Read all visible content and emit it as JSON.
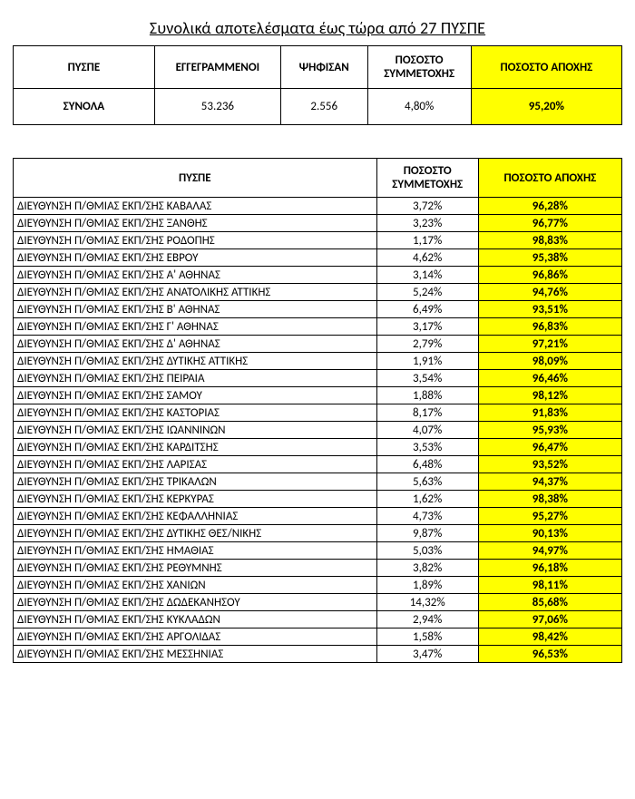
{
  "title": "Συνολικά αποτελέσματα έως τώρα από 27 ΠΥΣΠΕ",
  "colors": {
    "highlight": "#ffff00",
    "border": "#000000",
    "background": "#ffffff",
    "text": "#000000"
  },
  "summary": {
    "headers": {
      "pyspe": "ΠΥΣΠΕ",
      "registered": "ΕΓΓΕΓΡΑΜΜΕΝΟΙ",
      "voted": "ΨΗΦΙΣΑΝ",
      "participation": "ΠΟΣΟΣΤΟ ΣΥΜΜΕΤΟΧΗΣ",
      "abstention": "ΠΟΣΟΣΤΟ ΑΠΟΧΗΣ"
    },
    "row": {
      "label": "ΣΥΝΟΛΑ",
      "registered": "53.236",
      "voted": "2.556",
      "participation": "4,80%",
      "abstention": "95,20%"
    }
  },
  "detail": {
    "headers": {
      "pyspe": "ΠΥΣΠΕ",
      "participation": "ΠΟΣΟΣΤΟ ΣΥΜΜΕΤΟΧΗΣ",
      "abstention": "ΠΟΣΟΣΤΟ ΑΠΟΧΗΣ"
    },
    "rows": [
      {
        "name": "ΔΙΕΥΘΥΝΣΗ Π/ΘΜΙΑΣ ΕΚΠ/ΣΗΣ ΚΑΒΑΛΑΣ",
        "participation": "3,72%",
        "abstention": "96,28%"
      },
      {
        "name": "ΔΙΕΥΘΥΝΣΗ Π/ΘΜΙΑΣ ΕΚΠ/ΣΗΣ ΞΑΝΘΗΣ",
        "participation": "3,23%",
        "abstention": "96,77%"
      },
      {
        "name": "ΔΙΕΥΘΥΝΣΗ Π/ΘΜΙΑΣ ΕΚΠ/ΣΗΣ ΡΟΔΟΠΗΣ",
        "participation": "1,17%",
        "abstention": "98,83%"
      },
      {
        "name": "ΔΙΕΥΘΥΝΣΗ Π/ΘΜΙΑΣ ΕΚΠ/ΣΗΣ ΕΒΡΟΥ",
        "participation": "4,62%",
        "abstention": "95,38%"
      },
      {
        "name": "ΔΙΕΥΘΥΝΣΗ Π/ΘΜΙΑΣ ΕΚΠ/ΣΗΣ Α' ΑΘΗΝΑΣ",
        "participation": "3,14%",
        "abstention": "96,86%"
      },
      {
        "name": "ΔΙΕΥΘΥΝΣΗ Π/ΘΜΙΑΣ ΕΚΠ/ΣΗΣ ΑΝΑΤΟΛΙΚΗΣ ΑΤΤΙΚΗΣ",
        "participation": "5,24%",
        "abstention": "94,76%"
      },
      {
        "name": "ΔΙΕΥΘΥΝΣΗ Π/ΘΜΙΑΣ ΕΚΠ/ΣΗΣ Β' ΑΘΗΝΑΣ",
        "participation": "6,49%",
        "abstention": "93,51%"
      },
      {
        "name": "ΔΙΕΥΘΥΝΣΗ Π/ΘΜΙΑΣ ΕΚΠ/ΣΗΣ Γ' ΑΘΗΝΑΣ",
        "participation": "3,17%",
        "abstention": "96,83%"
      },
      {
        "name": "ΔΙΕΥΘΥΝΣΗ Π/ΘΜΙΑΣ ΕΚΠ/ΣΗΣ Δ' ΑΘΗΝΑΣ",
        "participation": "2,79%",
        "abstention": "97,21%"
      },
      {
        "name": "ΔΙΕΥΘΥΝΣΗ Π/ΘΜΙΑΣ ΕΚΠ/ΣΗΣ ΔΥΤΙΚΗΣ ΑΤΤΙΚΗΣ",
        "participation": "1,91%",
        "abstention": "98,09%"
      },
      {
        "name": "ΔΙΕΥΘΥΝΣΗ Π/ΘΜΙΑΣ ΕΚΠ/ΣΗΣ ΠΕΙΡΑΙΑ",
        "participation": "3,54%",
        "abstention": "96,46%"
      },
      {
        "name": "ΔΙΕΥΘΥΝΣΗ Π/ΘΜΙΑΣ ΕΚΠ/ΣΗΣ ΣΑΜΟΥ",
        "participation": "1,88%",
        "abstention": "98,12%"
      },
      {
        "name": "ΔΙΕΥΘΥΝΣΗ Π/ΘΜΙΑΣ ΕΚΠ/ΣΗΣ ΚΑΣΤΟΡΙΑΣ",
        "participation": "8,17%",
        "abstention": "91,83%"
      },
      {
        "name": "ΔΙΕΥΘΥΝΣΗ Π/ΘΜΙΑΣ ΕΚΠ/ΣΗΣ ΙΩΑΝΝΙΝΩΝ",
        "participation": "4,07%",
        "abstention": "95,93%"
      },
      {
        "name": "ΔΙΕΥΘΥΝΣΗ Π/ΘΜΙΑΣ ΕΚΠ/ΣΗΣ ΚΑΡΔΙΤΣΗΣ",
        "participation": "3,53%",
        "abstention": "96,47%"
      },
      {
        "name": "ΔΙΕΥΘΥΝΣΗ Π/ΘΜΙΑΣ ΕΚΠ/ΣΗΣ ΛΑΡΙΣΑΣ",
        "participation": "6,48%",
        "abstention": "93,52%"
      },
      {
        "name": "ΔΙΕΥΘΥΝΣΗ Π/ΘΜΙΑΣ ΕΚΠ/ΣΗΣ ΤΡΙΚΑΛΩΝ",
        "participation": "5,63%",
        "abstention": "94,37%"
      },
      {
        "name": "ΔΙΕΥΘΥΝΣΗ Π/ΘΜΙΑΣ ΕΚΠ/ΣΗΣ ΚΕΡΚΥΡΑΣ",
        "participation": "1,62%",
        "abstention": "98,38%"
      },
      {
        "name": "ΔΙΕΥΘΥΝΣΗ Π/ΘΜΙΑΣ ΕΚΠ/ΣΗΣ ΚΕΦΑΛΛΗΝΙΑΣ",
        "participation": "4,73%",
        "abstention": "95,27%"
      },
      {
        "name": "ΔΙΕΥΘΥΝΣΗ Π/ΘΜΙΑΣ ΕΚΠ/ΣΗΣ ΔΥΤΙΚΗΣ ΘΕΣ/ΝΙΚΗΣ",
        "participation": "9,87%",
        "abstention": "90,13%"
      },
      {
        "name": "ΔΙΕΥΘΥΝΣΗ Π/ΘΜΙΑΣ ΕΚΠ/ΣΗΣ ΗΜΑΘΙΑΣ",
        "participation": "5,03%",
        "abstention": "94,97%"
      },
      {
        "name": "ΔΙΕΥΘΥΝΣΗ Π/ΘΜΙΑΣ ΕΚΠ/ΣΗΣ ΡΕΘΥΜΝΗΣ",
        "participation": "3,82%",
        "abstention": "96,18%"
      },
      {
        "name": "ΔΙΕΥΘΥΝΣΗ Π/ΘΜΙΑΣ ΕΚΠ/ΣΗΣ ΧΑΝΙΩΝ",
        "participation": "1,89%",
        "abstention": "98,11%"
      },
      {
        "name": "ΔΙΕΥΘΥΝΣΗ Π/ΘΜΙΑΣ ΕΚΠ/ΣΗΣ ΔΩΔΕΚΑΝΗΣΟΥ",
        "participation": "14,32%",
        "abstention": "85,68%"
      },
      {
        "name": "ΔΙΕΥΘΥΝΣΗ Π/ΘΜΙΑΣ ΕΚΠ/ΣΗΣ ΚΥΚΛΑΔΩΝ",
        "participation": "2,94%",
        "abstention": "97,06%"
      },
      {
        "name": "ΔΙΕΥΘΥΝΣΗ Π/ΘΜΙΑΣ ΕΚΠ/ΣΗΣ ΑΡΓΟΛΙΔΑΣ",
        "participation": "1,58%",
        "abstention": "98,42%"
      },
      {
        "name": "ΔΙΕΥΘΥΝΣΗ Π/ΘΜΙΑΣ ΕΚΠ/ΣΗΣ ΜΕΣΣΗΝΙΑΣ",
        "participation": "3,47%",
        "abstention": "96,53%"
      }
    ]
  }
}
